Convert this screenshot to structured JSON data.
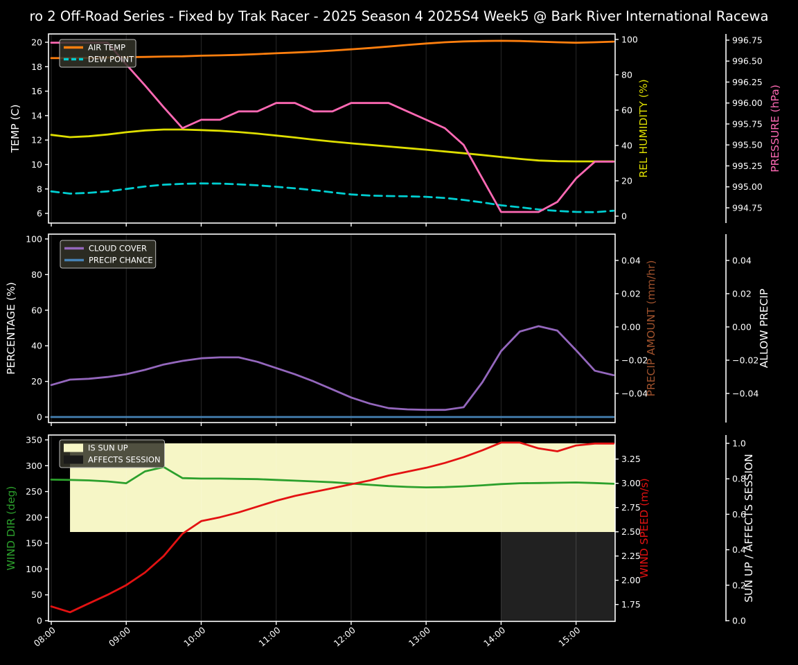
{
  "title": "ro 2 Off-Road Series - Fixed by Trak Racer - 2025 Season 4 2025S4 Week5 @ Bark River International Racewa",
  "colors": {
    "background": "#000000",
    "axis_text": "#ffffff",
    "grid": "rgba(255,255,255,0.16)",
    "legend_bg": "rgba(50,50,40,0.85)",
    "legend_border": "#bbbbbb",
    "air_temp": "#ff7f0e",
    "dew_point": "#00ced1",
    "rel_humidity": "#dede00",
    "pressure": "#ff69b4",
    "cloud_cover": "#9467bd",
    "precip_chance": "#4682b4",
    "precip_amount": "#a0522d",
    "allow_precip": "#ffffff",
    "wind_dir": "#2ca02c",
    "wind_speed": "#e31212",
    "sun_up_fill": "#f6f6c6",
    "affects_session_fill": "#212121"
  },
  "x_axis": {
    "tick_hours": [
      8,
      9,
      10,
      11,
      12,
      13,
      14,
      15
    ],
    "tick_labels": [
      "08:00",
      "09:00",
      "10:00",
      "11:00",
      "12:00",
      "13:00",
      "14:00",
      "15:00"
    ]
  },
  "chart_data": [
    {
      "name": "temp-humidity-pressure",
      "type": "line",
      "x_start_hour": 8,
      "x_step_hours": 0.25,
      "axes": {
        "left": {
          "label": "TEMP (C)",
          "color": "#ffffff",
          "ticks": [
            6,
            8,
            10,
            12,
            14,
            16,
            18,
            20
          ],
          "decimals": 0,
          "ylim": [
            5.21,
            20.68
          ]
        },
        "right": {
          "label": "REL HUMIDITY (%)",
          "color": "#dede00",
          "ticks": [
            0,
            20,
            40,
            60,
            80,
            100
          ],
          "decimals": 0,
          "ylim": [
            -3.9,
            103.1
          ]
        },
        "right2": {
          "label": "PRESSURE (hPa)",
          "color": "#ff69b4",
          "ticks": [
            994.75,
            995.0,
            995.25,
            995.5,
            995.75,
            996.0,
            996.25,
            996.5,
            996.75
          ],
          "decimals": 2,
          "ylim": [
            994.568,
            996.824
          ]
        }
      },
      "series": [
        {
          "id": "rel-humidity",
          "name": "REL HUMIDITY",
          "axis": "right",
          "color": "#dede00",
          "values": [
            46,
            44.7,
            45.2,
            46.2,
            47.5,
            48.5,
            49,
            49,
            48.7,
            48.3,
            47.6,
            46.7,
            45.6,
            44.5,
            43.3,
            42.2,
            41.2,
            40.3,
            39.4,
            38.5,
            37.6,
            36.6,
            35.6,
            34.6,
            33.5,
            32.4,
            31.5,
            31.1,
            31,
            31,
            31
          ]
        },
        {
          "id": "dew-point",
          "name": "DEW POINT",
          "axis": "left",
          "color": "#00ced1",
          "dash": [
            11,
            7
          ],
          "values": [
            7.8,
            7.62,
            7.68,
            7.8,
            8.0,
            8.2,
            8.35,
            8.42,
            8.45,
            8.44,
            8.38,
            8.3,
            8.18,
            8.05,
            7.9,
            7.72,
            7.55,
            7.46,
            7.42,
            7.4,
            7.36,
            7.26,
            7.1,
            6.9,
            6.66,
            6.5,
            6.32,
            6.2,
            6.12,
            6.1,
            6.22
          ]
        },
        {
          "id": "air-temp",
          "name": "AIR TEMP",
          "axis": "left",
          "color": "#ff7f0e",
          "values": [
            18.7,
            18.7,
            18.72,
            18.75,
            18.78,
            18.8,
            18.83,
            18.85,
            18.9,
            18.93,
            18.97,
            19.03,
            19.1,
            19.16,
            19.23,
            19.32,
            19.42,
            19.53,
            19.65,
            19.78,
            19.9,
            20.0,
            20.07,
            20.1,
            20.12,
            20.1,
            20.05,
            20.0,
            19.96,
            20.0,
            20.05
          ]
        },
        {
          "id": "pressure",
          "name": "PRESSURE",
          "axis": "right2",
          "color": "#ff69b4",
          "values": [
            996.72,
            996.72,
            996.72,
            996.72,
            996.46,
            996.21,
            995.95,
            995.7,
            995.8,
            995.8,
            995.9,
            995.9,
            996.0,
            996.0,
            995.9,
            995.9,
            996.0,
            996.0,
            996.0,
            995.9,
            995.8,
            995.7,
            995.5,
            995.1,
            994.7,
            994.7,
            994.7,
            994.82,
            995.1,
            995.3,
            995.3
          ]
        }
      ],
      "legend": [
        {
          "label": "AIR TEMP",
          "swatch": "line",
          "color": "#ff7f0e"
        },
        {
          "label": "DEW POINT",
          "swatch": "dashed-line",
          "color": "#00ced1"
        }
      ]
    },
    {
      "name": "cloud-precip",
      "type": "line",
      "x_start_hour": 8,
      "x_step_hours": 0.25,
      "axes": {
        "left": {
          "label": "PERCENTAGE (%)",
          "color": "#ffffff",
          "ticks": [
            0,
            20,
            40,
            60,
            80,
            100
          ],
          "decimals": 0,
          "ylim": [
            -3.1,
            102.7
          ]
        },
        "right": {
          "label": "PRECIP AMOUNT (mm/hr)",
          "color": "#a0522d",
          "ticks": [
            0.04,
            0.02,
            0.0,
            -0.02,
            -0.04
          ],
          "decimals": 2,
          "ylim": [
            -0.0575,
            0.0558
          ]
        },
        "right2": {
          "label": "ALLOW PRECIP",
          "color": "#ffffff",
          "ticks": [
            0.04,
            0.02,
            0.0,
            -0.02,
            -0.04
          ],
          "decimals": 2,
          "ylim": [
            -0.0575,
            0.0558
          ]
        }
      },
      "series": [
        {
          "id": "cloud-cover",
          "name": "CLOUD COVER",
          "axis": "left",
          "color": "#9467bd",
          "values": [
            18,
            21,
            21.5,
            22.5,
            24,
            26.5,
            29.5,
            31.5,
            33,
            33.5,
            33.5,
            31,
            27.5,
            24,
            20,
            15.5,
            11,
            7.5,
            5,
            4.3,
            4,
            4,
            5.5,
            19.5,
            37,
            48,
            51,
            48.5,
            37.5,
            26,
            23.5
          ]
        },
        {
          "id": "precip-chance",
          "name": "PRECIP CHANCE",
          "axis": "left",
          "color": "#4682b4",
          "values": [
            0,
            0,
            0,
            0,
            0,
            0,
            0,
            0,
            0,
            0,
            0,
            0,
            0,
            0,
            0,
            0,
            0,
            0,
            0,
            0,
            0,
            0,
            0,
            0,
            0,
            0,
            0,
            0,
            0,
            0,
            0
          ]
        }
      ],
      "legend": [
        {
          "label": "CLOUD COVER",
          "swatch": "line",
          "color": "#9467bd"
        },
        {
          "label": "PRECIP CHANCE",
          "swatch": "line",
          "color": "#4682b4"
        }
      ]
    },
    {
      "name": "wind-sun",
      "type": "line",
      "x_start_hour": 8,
      "x_step_hours": 0.25,
      "axes": {
        "left": {
          "label": "WIND DIR (deg)",
          "color": "#2ca02c",
          "ticks": [
            0,
            50,
            100,
            150,
            200,
            250,
            300,
            350
          ],
          "decimals": 0,
          "ylim": [
            -1.34,
            359.4
          ]
        },
        "right": {
          "label": "WIND SPEED (m/s)",
          "color": "#e31212",
          "ticks": [
            1.75,
            2.0,
            2.25,
            2.5,
            2.75,
            3.0,
            3.25
          ],
          "decimals": 2,
          "ylim": [
            1.576,
            3.498
          ]
        },
        "right2": {
          "label": "SUN UP / AFFECTS SESSION",
          "color": "#ffffff",
          "ticks": [
            0.0,
            0.2,
            0.4,
            0.6,
            0.8,
            1.0
          ],
          "decimals": 1,
          "ylim": [
            -0.004,
            1.047
          ]
        }
      },
      "regions": [
        {
          "name": "is-sun-up",
          "label": "IS SUN UP",
          "color": "#f6f6c6",
          "axis": "right2",
          "x_from_hour": 8.25,
          "x_to_hour": 15.55,
          "y_from": 0.5,
          "y_to": 1.0
        },
        {
          "name": "affects-session",
          "label": "AFFECTS SESSION",
          "color": "#212121",
          "axis": "right2",
          "x_from_hour": 14.0,
          "x_to_hour": 15.55,
          "y_from": 0.0,
          "y_to": 0.5
        }
      ],
      "flags": {
        "is_sun_up": [
          0,
          1,
          1,
          1,
          1,
          1,
          1,
          1,
          1,
          1,
          1,
          1,
          1,
          1,
          1,
          1,
          1,
          1,
          1,
          1,
          1,
          1,
          1,
          1,
          1,
          1,
          1,
          1,
          1,
          1,
          1
        ],
        "affects_session": [
          0,
          0,
          0,
          0,
          0,
          0,
          0,
          0,
          0,
          0,
          0,
          0,
          0,
          0,
          0,
          0,
          0,
          0,
          0,
          0,
          0,
          0,
          0,
          0,
          1,
          1,
          1,
          1,
          1,
          1,
          1
        ]
      },
      "series": [
        {
          "id": "wind-dir",
          "name": "WIND DIR",
          "axis": "left",
          "color": "#2ca02c",
          "values": [
            273,
            272.5,
            271.5,
            269.5,
            266,
            289,
            297.5,
            276,
            275,
            275,
            274.5,
            274,
            272.5,
            271,
            269.5,
            268,
            265.5,
            263,
            260.5,
            259,
            258,
            258.5,
            260,
            262,
            264.5,
            266,
            266.5,
            267,
            267.5,
            266.5,
            265
          ]
        },
        {
          "id": "wind-speed",
          "name": "WIND SPEED",
          "axis": "right",
          "color": "#e31212",
          "values": [
            1.73,
            1.67,
            1.76,
            1.85,
            1.95,
            2.08,
            2.25,
            2.48,
            2.61,
            2.65,
            2.7,
            2.76,
            2.82,
            2.87,
            2.91,
            2.95,
            2.99,
            3.03,
            3.08,
            3.12,
            3.16,
            3.21,
            3.27,
            3.34,
            3.42,
            3.42,
            3.36,
            3.33,
            3.39,
            3.41,
            3.41
          ]
        }
      ],
      "legend": [
        {
          "label": "IS SUN UP",
          "swatch": "patch",
          "color": "#f6f6c6"
        },
        {
          "label": "AFFECTS SESSION",
          "swatch": "patch",
          "color": "#1a1a1a"
        }
      ]
    }
  ]
}
